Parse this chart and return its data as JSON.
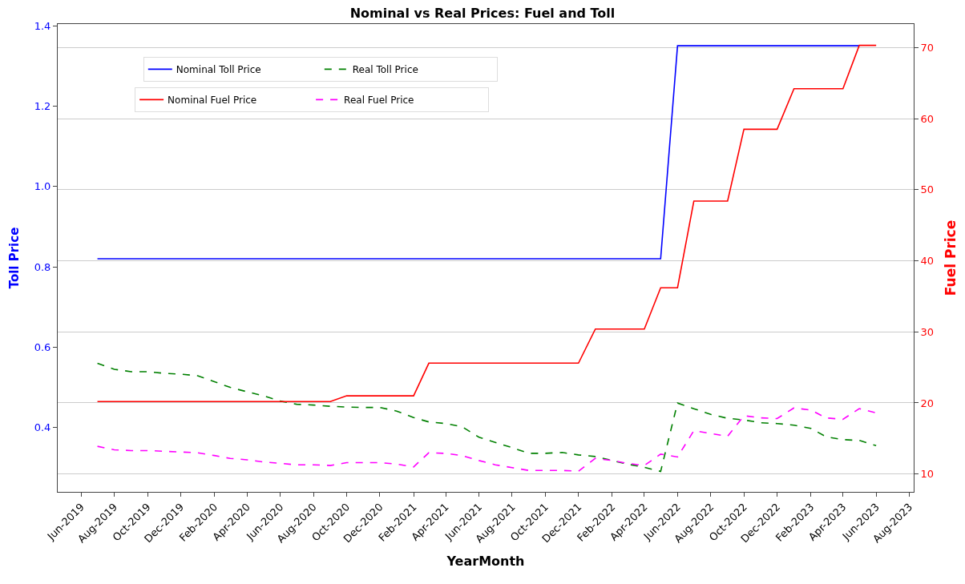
{
  "chart_data": {
    "type": "line",
    "title": "Nominal vs Real Prices: Fuel and Toll",
    "xlabel": "YearMonth",
    "ylabel": "Toll Price",
    "y2label": "Fuel Price",
    "x": [
      "2019-07",
      "2019-08",
      "2019-09",
      "2019-10",
      "2019-11",
      "2019-12",
      "2020-01",
      "2020-02",
      "2020-03",
      "2020-04",
      "2020-05",
      "2020-06",
      "2020-07",
      "2020-08",
      "2020-09",
      "2020-10",
      "2020-11",
      "2020-12",
      "2021-01",
      "2021-02",
      "2021-03",
      "2021-04",
      "2021-05",
      "2021-06",
      "2021-07",
      "2021-08",
      "2021-09",
      "2021-10",
      "2021-11",
      "2021-12",
      "2022-01",
      "2022-02",
      "2022-03",
      "2022-04",
      "2022-05",
      "2022-06",
      "2022-07",
      "2022-08",
      "2022-09",
      "2022-10",
      "2022-11",
      "2022-12",
      "2023-01",
      "2023-02",
      "2023-03",
      "2023-04",
      "2023-05",
      "2023-06"
    ],
    "series": [
      {
        "name": "Nominal Toll Price",
        "color": "#0000ff",
        "axis": "y",
        "line_style": "solid",
        "values": [
          0.82,
          0.82,
          0.82,
          0.82,
          0.82,
          0.82,
          0.82,
          0.82,
          0.82,
          0.82,
          0.82,
          0.82,
          0.82,
          0.82,
          0.82,
          0.82,
          0.82,
          0.82,
          0.82,
          0.82,
          0.82,
          0.82,
          0.82,
          0.82,
          0.82,
          0.82,
          0.82,
          0.82,
          0.82,
          0.82,
          0.82,
          0.82,
          0.82,
          0.82,
          0.82,
          1.35,
          1.35,
          1.35,
          1.35,
          1.35,
          1.35,
          1.35,
          1.35,
          1.35,
          1.35,
          1.35,
          1.35,
          null
        ]
      },
      {
        "name": "Real Toll Price",
        "color": "#008000",
        "axis": "y",
        "line_style": "dashed",
        "values": [
          0.56,
          0.545,
          0.539,
          0.539,
          0.535,
          0.533,
          0.529,
          0.514,
          0.5,
          0.489,
          0.479,
          0.466,
          0.458,
          0.456,
          0.453,
          0.451,
          0.45,
          0.45,
          0.441,
          0.425,
          0.414,
          0.41,
          0.402,
          0.376,
          0.363,
          0.35,
          0.336,
          0.336,
          0.338,
          0.332,
          0.328,
          0.318,
          0.309,
          0.301,
          0.291,
          0.461,
          0.447,
          0.433,
          0.423,
          0.419,
          0.412,
          0.41,
          0.406,
          0.398,
          0.377,
          0.37,
          0.368,
          0.355
        ]
      },
      {
        "name": "Nominal Fuel Price",
        "color": "#ff0000",
        "axis": "y2",
        "line_style": "solid",
        "values": [
          20.2,
          20.2,
          20.2,
          20.2,
          20.2,
          20.2,
          20.2,
          20.2,
          20.2,
          20.2,
          20.2,
          20.2,
          20.2,
          20.2,
          20.2,
          21.0,
          21.0,
          21.0,
          21.0,
          21.0,
          25.6,
          25.6,
          25.6,
          25.6,
          25.6,
          25.6,
          25.6,
          25.6,
          25.6,
          25.6,
          30.4,
          30.4,
          30.4,
          30.4,
          36.2,
          36.2,
          48.4,
          48.4,
          48.4,
          58.5,
          58.5,
          58.5,
          64.2,
          64.2,
          64.2,
          64.2,
          70.3,
          70.3
        ]
      },
      {
        "name": "Real Fuel Price",
        "color": "#ff00ff",
        "axis": "y2",
        "line_style": "dashed",
        "values": [
          13.9,
          13.4,
          13.3,
          13.3,
          13.2,
          13.1,
          13.0,
          12.6,
          12.2,
          12.0,
          11.7,
          11.5,
          11.3,
          11.3,
          11.2,
          11.6,
          11.6,
          11.6,
          11.4,
          11.0,
          13.0,
          12.9,
          12.6,
          11.9,
          11.3,
          10.9,
          10.5,
          10.5,
          10.5,
          10.4,
          12.2,
          11.9,
          11.5,
          11.2,
          12.8,
          12.4,
          16.1,
          15.7,
          15.3,
          18.2,
          17.9,
          17.8,
          19.3,
          19.0,
          17.9,
          17.7,
          19.2,
          18.6
        ]
      }
    ],
    "xlim": [
      "2019-04-19",
      "2023-08-09"
    ],
    "xticks": [
      {
        "value": "2019-06",
        "label": "Jun-2019"
      },
      {
        "value": "2019-08",
        "label": "Aug-2019"
      },
      {
        "value": "2019-10",
        "label": "Oct-2019"
      },
      {
        "value": "2019-12",
        "label": "Dec-2019"
      },
      {
        "value": "2020-02",
        "label": "Feb-2020"
      },
      {
        "value": "2020-04",
        "label": "Apr-2020"
      },
      {
        "value": "2020-06",
        "label": "Jun-2020"
      },
      {
        "value": "2020-08",
        "label": "Aug-2020"
      },
      {
        "value": "2020-10",
        "label": "Oct-2020"
      },
      {
        "value": "2020-12",
        "label": "Dec-2020"
      },
      {
        "value": "2021-02",
        "label": "Feb-2021"
      },
      {
        "value": "2021-04",
        "label": "Apr-2021"
      },
      {
        "value": "2021-06",
        "label": "Jun-2021"
      },
      {
        "value": "2021-08",
        "label": "Aug-2021"
      },
      {
        "value": "2021-10",
        "label": "Oct-2021"
      },
      {
        "value": "2021-12",
        "label": "Dec-2021"
      },
      {
        "value": "2022-02",
        "label": "Feb-2022"
      },
      {
        "value": "2022-04",
        "label": "Apr-2022"
      },
      {
        "value": "2022-06",
        "label": "Jun-2022"
      },
      {
        "value": "2022-08",
        "label": "Aug-2022"
      },
      {
        "value": "2022-10",
        "label": "Oct-2022"
      },
      {
        "value": "2022-12",
        "label": "Dec-2022"
      },
      {
        "value": "2023-02",
        "label": "Feb-2023"
      },
      {
        "value": "2023-04",
        "label": "Apr-2023"
      },
      {
        "value": "2023-06",
        "label": "Jun-2023"
      },
      {
        "value": "2023-08",
        "label": "Aug-2023"
      }
    ],
    "ylim": [
      0.24,
      1.404
    ],
    "yticks": [
      0.4,
      0.6,
      0.8,
      {
        "value": 1.0,
        "label": "1.0"
      },
      1.2,
      1.4
    ],
    "y2lim": [
      7.49,
      73.3
    ],
    "y2ticks": [
      10,
      20,
      30,
      40,
      50,
      60,
      70
    ],
    "grid": "y",
    "legend": "top left"
  }
}
